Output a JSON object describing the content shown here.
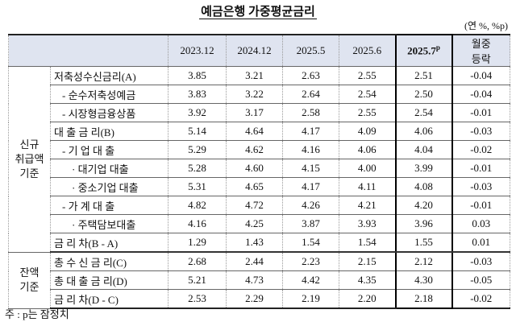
{
  "title": "예금은행 가중평균금리",
  "unit": "(연 %, %p)",
  "table": {
    "columns": [
      "2023.12",
      "2024.12",
      "2025.5",
      "2025.6"
    ],
    "latest_column": {
      "label": "2025.7",
      "superscript": "p"
    },
    "change_column": [
      "월중",
      "등락"
    ],
    "groups": [
      {
        "label": [
          "신규",
          "취급액",
          "기준"
        ],
        "rows": [
          {
            "label": "저축성수신금리(A)",
            "values": [
              "3.85",
              "3.21",
              "2.63",
              "2.55",
              "2.51",
              "-0.04"
            ]
          },
          {
            "label": "- 순수저축성예금",
            "values": [
              "3.83",
              "3.22",
              "2.64",
              "2.54",
              "2.50",
              "-0.04"
            ]
          },
          {
            "label": "- 시장형금융상품",
            "values": [
              "3.92",
              "3.17",
              "2.58",
              "2.55",
              "2.54",
              "-0.01"
            ]
          },
          {
            "label": "대 출 금 리(B)",
            "values": [
              "5.14",
              "4.64",
              "4.17",
              "4.09",
              "4.06",
              "-0.03"
            ]
          },
          {
            "label": "- 기 업 대 출",
            "values": [
              "5.29",
              "4.62",
              "4.16",
              "4.06",
              "4.04",
              "-0.02"
            ]
          },
          {
            "label": "· 대기업 대출",
            "values": [
              "5.28",
              "4.60",
              "4.15",
              "4.00",
              "3.99",
              "-0.01"
            ]
          },
          {
            "label": "· 중소기업 대출",
            "values": [
              "5.31",
              "4.65",
              "4.17",
              "4.11",
              "4.08",
              "-0.03"
            ]
          },
          {
            "label": "- 가 계 대 출",
            "values": [
              "4.82",
              "4.72",
              "4.26",
              "4.21",
              "4.20",
              "-0.01"
            ]
          },
          {
            "label": "· 주택담보대출",
            "values": [
              "4.16",
              "4.25",
              "3.87",
              "3.93",
              "3.96",
              "0.03"
            ]
          },
          {
            "label": "금 리 차(B - A)",
            "values": [
              "1.29",
              "1.43",
              "1.54",
              "1.54",
              "1.55",
              "0.01"
            ]
          }
        ]
      },
      {
        "label": [
          "잔액",
          "기준"
        ],
        "rows": [
          {
            "label": "총 수 신 금 리(C)",
            "values": [
              "2.68",
              "2.44",
              "2.23",
              "2.15",
              "2.12",
              "-0.03"
            ]
          },
          {
            "label": "총 대 출 금 리(D)",
            "values": [
              "5.21",
              "4.73",
              "4.42",
              "4.35",
              "4.30",
              "-0.05"
            ]
          },
          {
            "label": "금 리 차(D - C)",
            "values": [
              "2.53",
              "2.29",
              "2.19",
              "2.20",
              "2.18",
              "-0.02"
            ]
          }
        ]
      }
    ]
  },
  "note": "주 : p는 잠정치"
}
